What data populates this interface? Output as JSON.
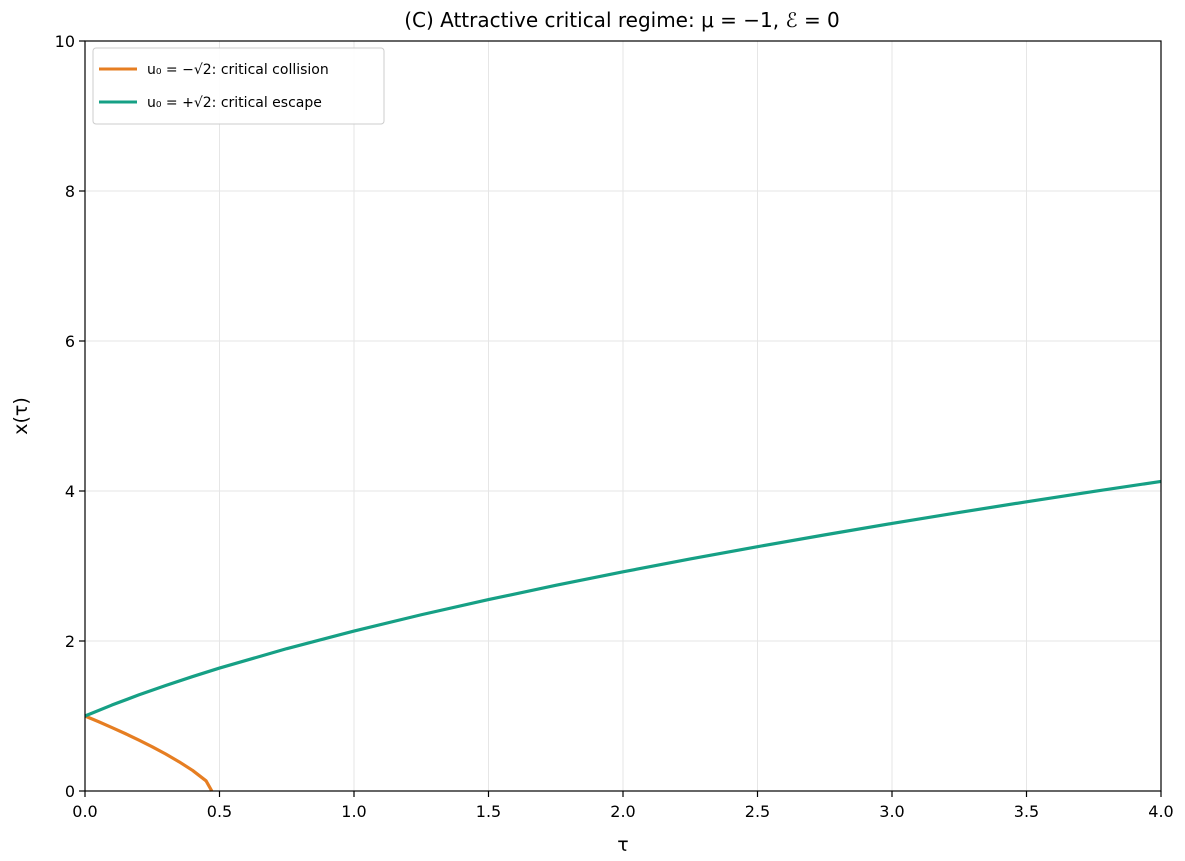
{
  "chart_data": {
    "type": "line",
    "title": "(C) Attractive critical regime: μ = −1, ℰ = 0",
    "xlabel": "τ",
    "ylabel": "x(τ)",
    "xlim": [
      0,
      4
    ],
    "ylim": [
      0,
      10
    ],
    "x_ticks": [
      "0.0",
      "0.5",
      "1.0",
      "1.5",
      "2.0",
      "2.5",
      "3.0",
      "3.5",
      "4.0"
    ],
    "y_ticks": [
      "0",
      "2",
      "4",
      "6",
      "8",
      "10"
    ],
    "grid": true,
    "legend_position": "top-left",
    "series": [
      {
        "name": "u₀ = −√2: critical collision",
        "color": "#e67e22",
        "x": [
          0.0,
          0.05,
          0.1,
          0.15,
          0.2,
          0.25,
          0.3,
          0.35,
          0.4,
          0.45,
          0.4714
        ],
        "y": [
          1.0,
          0.925,
          0.846,
          0.765,
          0.679,
          0.589,
          0.493,
          0.389,
          0.274,
          0.136,
          0.0
        ]
      },
      {
        "name": "u₀ = +√2: critical escape",
        "color": "#16a085",
        "x": [
          0.0,
          0.1,
          0.2,
          0.3,
          0.4,
          0.5,
          0.75,
          1.0,
          1.25,
          1.5,
          1.75,
          2.0,
          2.25,
          2.5,
          2.75,
          3.0,
          3.25,
          3.5,
          3.75,
          4.0
        ],
        "y": [
          1.0,
          1.146,
          1.281,
          1.407,
          1.526,
          1.639,
          1.898,
          2.133,
          2.35,
          2.552,
          2.742,
          2.922,
          3.094,
          3.258,
          3.415,
          3.567,
          3.714,
          3.856,
          3.994,
          4.128
        ]
      }
    ]
  }
}
